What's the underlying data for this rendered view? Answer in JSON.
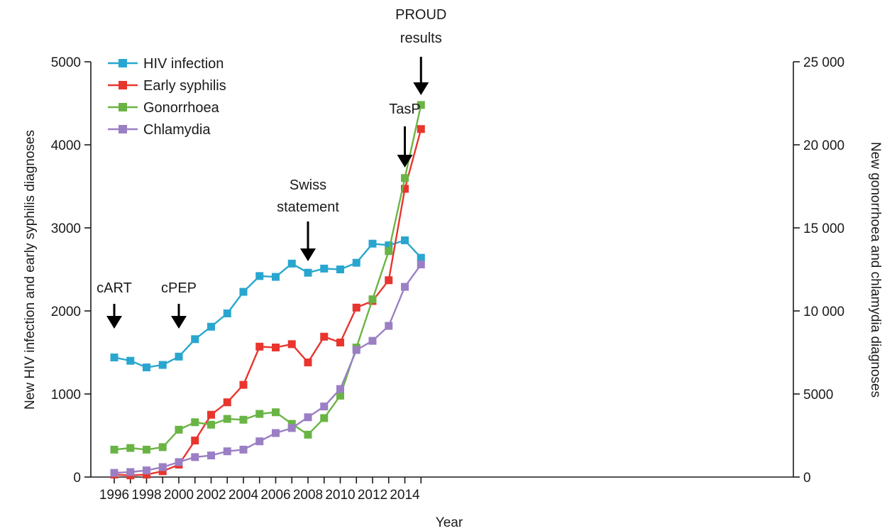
{
  "chart_data": {
    "type": "line",
    "xlabel": "Year",
    "ylabel_left": "New HIV infection and early syphilis diagnoses",
    "ylabel_right": "New gonorrhoea and chlamydia diagnoses",
    "xlim": [
      1996,
      2015
    ],
    "ylim_left": [
      0,
      5000
    ],
    "ylim_right": [
      0,
      25000
    ],
    "x_ticks": [
      1996,
      1998,
      2000,
      2002,
      2004,
      2006,
      2008,
      2010,
      2012,
      2014
    ],
    "x_tick_labels": [
      "1996",
      "1998",
      "2000",
      "2002",
      "2004",
      "2006",
      "2008",
      "2010",
      "2012",
      "2014"
    ],
    "y_left_ticks": [
      0,
      1000,
      2000,
      3000,
      4000,
      5000
    ],
    "y_left_tick_labels": [
      "0",
      "1000",
      "2000",
      "3000",
      "4000",
      "5000"
    ],
    "y_right_ticks": [
      0,
      5000,
      10000,
      15000,
      20000,
      25000
    ],
    "y_right_tick_labels": [
      "0",
      "5000",
      "10 000",
      "15 000",
      "20 000",
      "25 000"
    ],
    "grid": false,
    "legend_position": "top-left",
    "x": [
      1996,
      1997,
      1998,
      1999,
      2000,
      2001,
      2002,
      2003,
      2004,
      2005,
      2006,
      2007,
      2008,
      2009,
      2010,
      2011,
      2012,
      2013,
      2014,
      2015
    ],
    "series": [
      {
        "name": "HIV infection",
        "axis": "left",
        "color": "#29a6cf",
        "values": [
          1440,
          1400,
          1320,
          1350,
          1450,
          1660,
          1810,
          1970,
          2230,
          2420,
          2410,
          2570,
          2460,
          2510,
          2500,
          2580,
          2810,
          2790,
          2850,
          2640
        ]
      },
      {
        "name": "Early syphilis",
        "axis": "left",
        "color": "#e8352e",
        "values": [
          30,
          20,
          30,
          70,
          150,
          440,
          750,
          900,
          1110,
          1570,
          1560,
          1600,
          1380,
          1690,
          1620,
          2040,
          2120,
          2370,
          3470,
          4190
        ]
      },
      {
        "name": "Gonorrhoea",
        "axis": "right",
        "color": "#6ab445",
        "values": [
          1650,
          1750,
          1650,
          1800,
          2850,
          3300,
          3150,
          3500,
          3450,
          3800,
          3900,
          3200,
          2550,
          3550,
          4900,
          7800,
          10700,
          13600,
          18000,
          22400
        ]
      },
      {
        "name": "Chlamydia",
        "axis": "right",
        "color": "#9b7fc4",
        "values": [
          250,
          300,
          400,
          600,
          900,
          1200,
          1300,
          1550,
          1650,
          2150,
          2650,
          2950,
          3600,
          4250,
          5300,
          7650,
          8200,
          9100,
          11450,
          12800
        ]
      }
    ],
    "annotations": [
      {
        "id": "cart",
        "lines": [
          "cART"
        ],
        "x": 1996
      },
      {
        "id": "cpep",
        "lines": [
          "cPEP"
        ],
        "x": 2000
      },
      {
        "id": "swiss",
        "lines": [
          "Swiss",
          "statement"
        ],
        "x": 2008
      },
      {
        "id": "tasp",
        "lines": [
          "TasP"
        ],
        "x": 2014
      },
      {
        "id": "proud",
        "lines": [
          "PROUD",
          "results"
        ],
        "x": 2015
      }
    ]
  }
}
